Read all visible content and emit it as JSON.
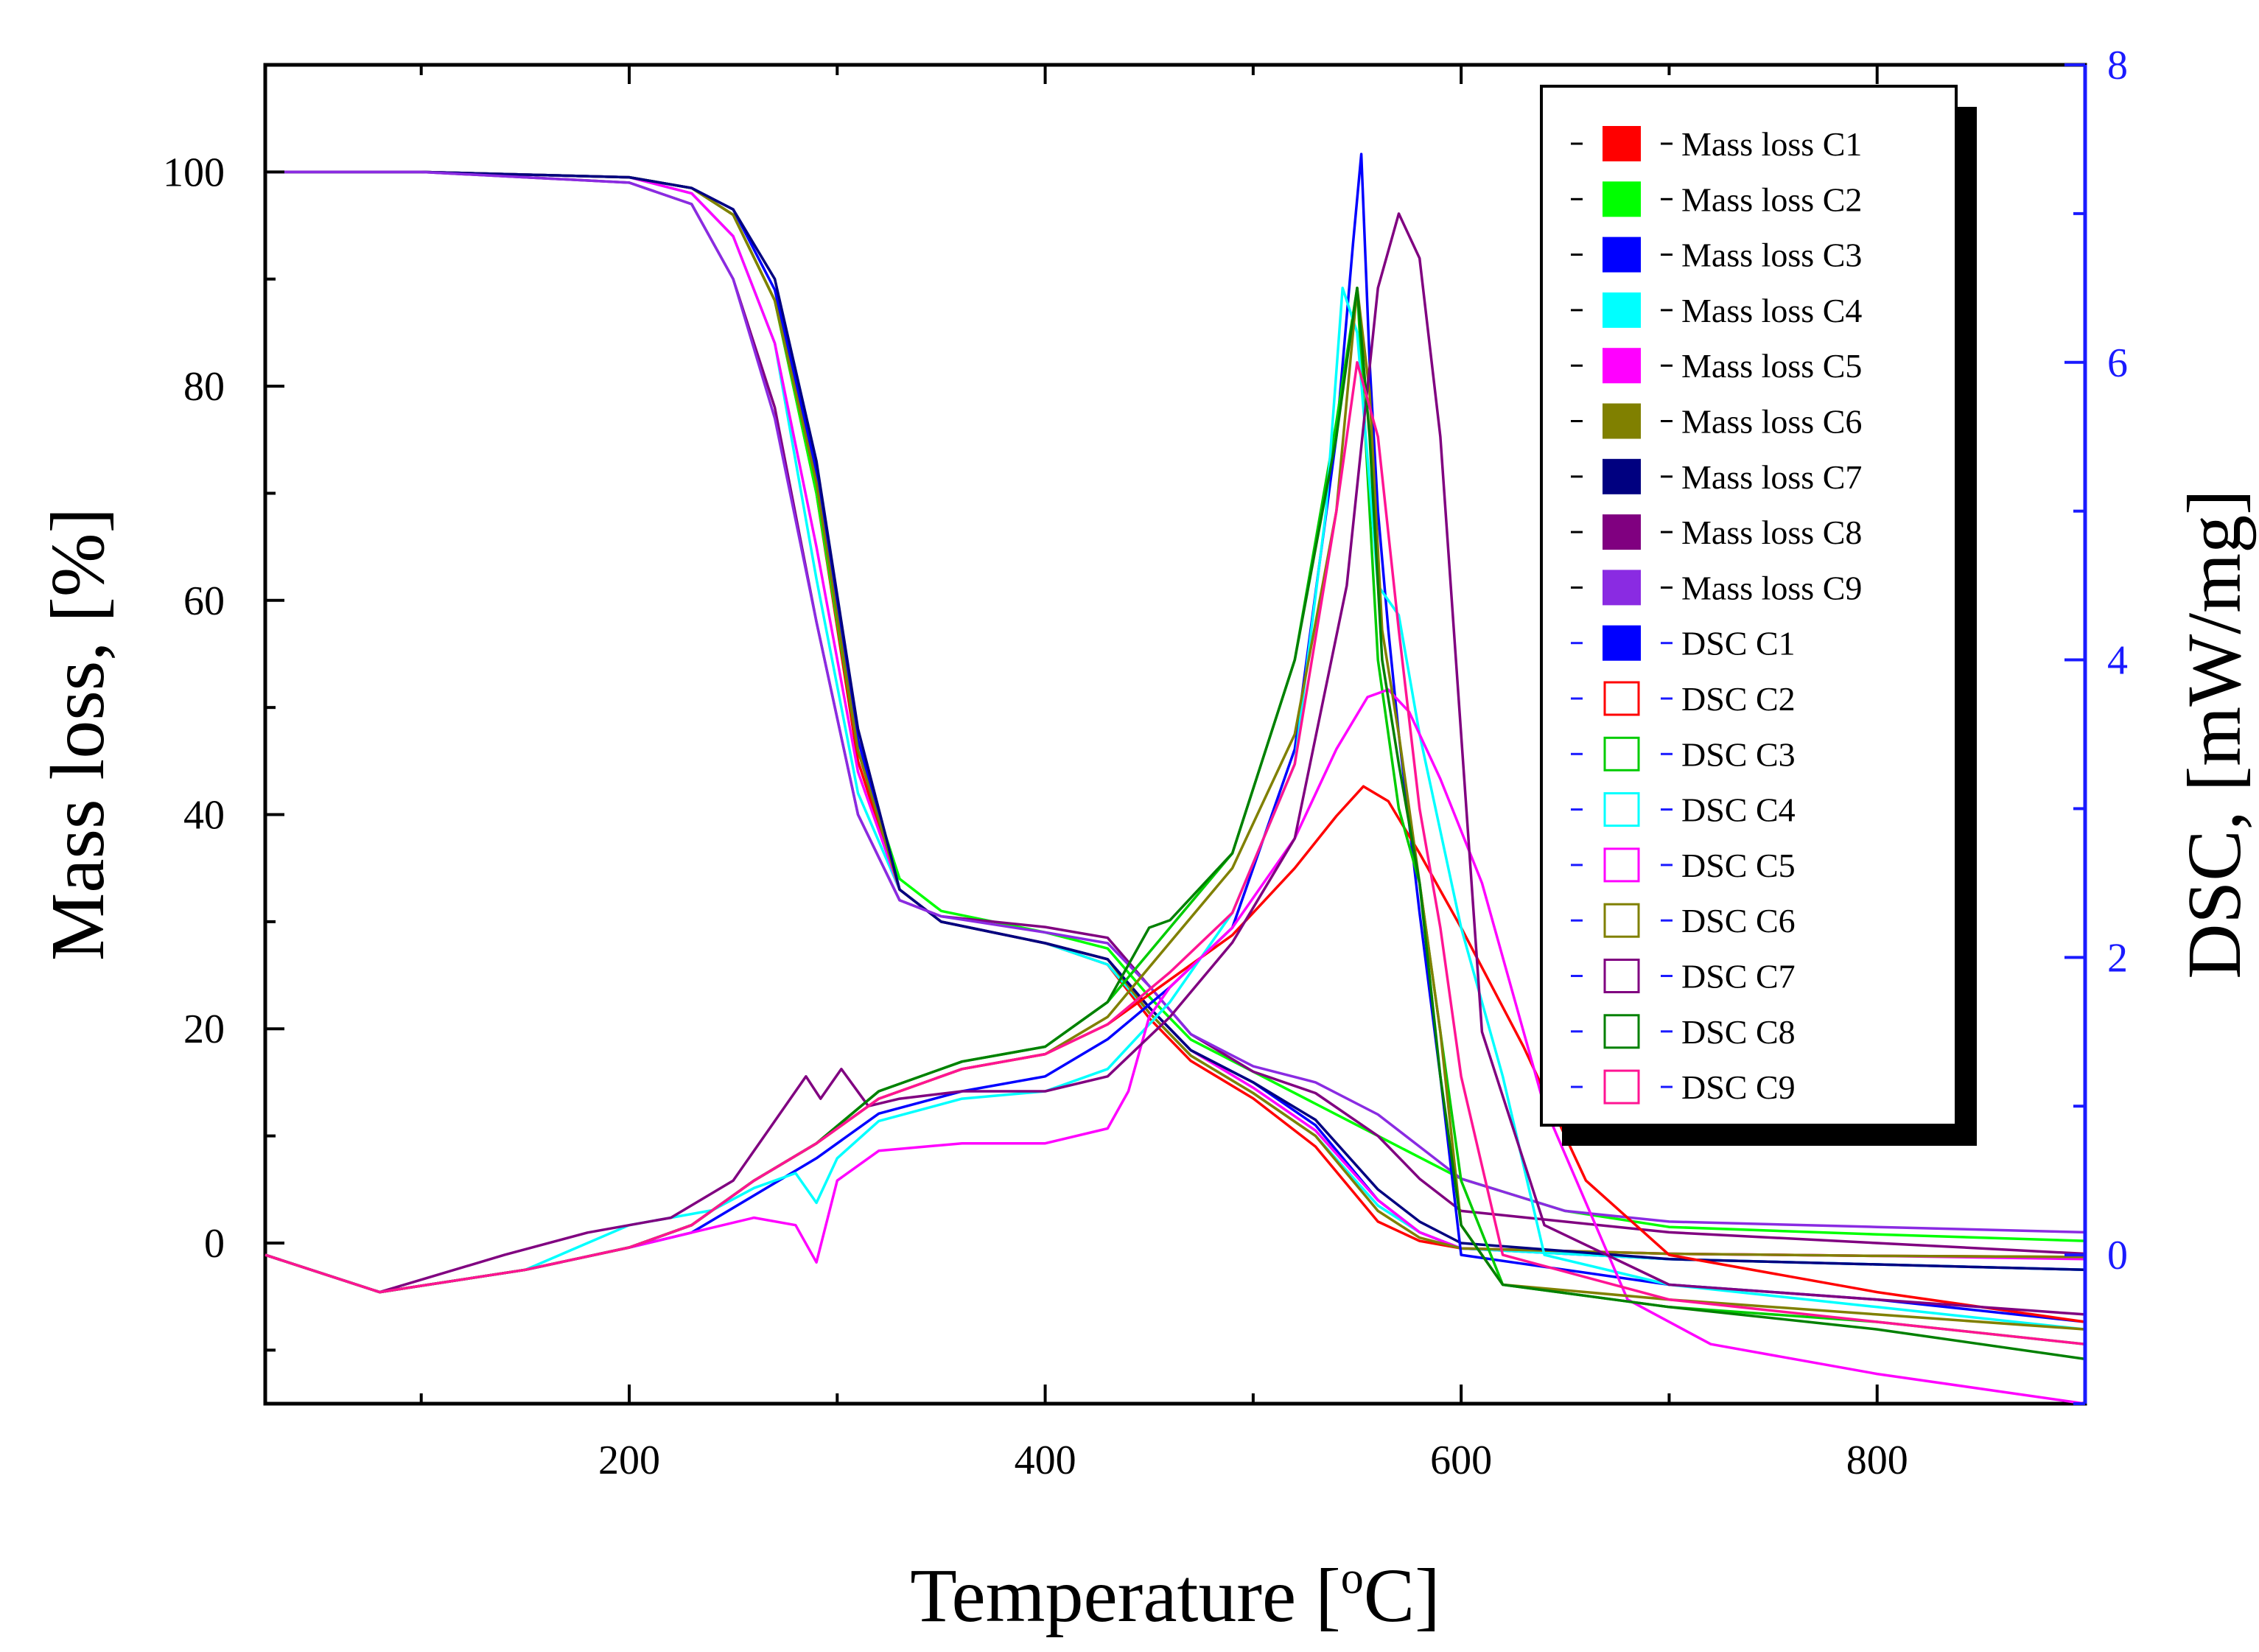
{
  "chart_data": {
    "type": "line",
    "xlabel": "Temperature [",
    "xlabel_sup": "o",
    "xlabel_unit": "C]",
    "ylabel": "Mass loss, [%]",
    "y2label": "DSC, [mW/mg]",
    "xlim": [
      25,
      900
    ],
    "ylim": [
      -15,
      110
    ],
    "y2lim": [
      -1,
      8
    ],
    "x_ticks": [
      200,
      400,
      600,
      800
    ],
    "y_ticks": [
      0,
      20,
      40,
      60,
      80,
      100
    ],
    "y2_ticks": [
      0,
      2,
      4,
      6,
      8
    ],
    "colors": {
      "left_axis": "#000000",
      "right_axis": "#1a1aff",
      "background": "#ffffff"
    },
    "legend": {
      "placement": "top-right",
      "items": [
        {
          "label": "Mass loss C1",
          "color": "#ff0000",
          "style": "filled"
        },
        {
          "label": "Mass loss C2",
          "color": "#00ff00",
          "style": "filled"
        },
        {
          "label": "Mass loss C3",
          "color": "#0000ff",
          "style": "filled"
        },
        {
          "label": "Mass loss C4",
          "color": "#00ffff",
          "style": "filled"
        },
        {
          "label": "Mass loss C5",
          "color": "#ff00ff",
          "style": "filled"
        },
        {
          "label": "Mass loss C6",
          "color": "#808000",
          "style": "filled"
        },
        {
          "label": "Mass loss C7",
          "color": "#000080",
          "style": "filled"
        },
        {
          "label": "Mass loss C8",
          "color": "#800080",
          "style": "filled"
        },
        {
          "label": "Mass loss C9",
          "color": "#8a2be2",
          "style": "filled"
        },
        {
          "label": "DSC C1",
          "color": "#0000ff",
          "style": "filled"
        },
        {
          "label": "DSC C2",
          "color": "#ff0000",
          "style": "open"
        },
        {
          "label": "DSC C3",
          "color": "#00cc00",
          "style": "open"
        },
        {
          "label": "DSC C4",
          "color": "#00ffff",
          "style": "open"
        },
        {
          "label": "DSC C5",
          "color": "#ff00ff",
          "style": "open"
        },
        {
          "label": "DSC C6",
          "color": "#808000",
          "style": "open"
        },
        {
          "label": "DSC C7",
          "color": "#800080",
          "style": "open"
        },
        {
          "label": "DSC C8",
          "color": "#008000",
          "style": "open"
        },
        {
          "label": "DSC C9",
          "color": "#ff1493",
          "style": "open"
        }
      ]
    },
    "mass_loss_series": [
      {
        "name": "Mass loss C1",
        "color": "#ff0000",
        "x": [
          25,
          100,
          200,
          230,
          250,
          270,
          290,
          310,
          330,
          350,
          400,
          430,
          450,
          470,
          500,
          530,
          560,
          580,
          600,
          700,
          800,
          900
        ],
        "y": [
          100,
          100,
          99.5,
          98.5,
          96,
          88,
          70,
          45,
          33,
          30,
          28,
          26,
          21,
          17,
          13.5,
          9,
          2,
          0.2,
          -0.5,
          -1,
          -1.2,
          -1.3
        ]
      },
      {
        "name": "Mass loss C2",
        "color": "#00ff00",
        "x": [
          25,
          100,
          200,
          230,
          250,
          270,
          290,
          310,
          330,
          350,
          400,
          430,
          450,
          470,
          500,
          530,
          560,
          580,
          600,
          650,
          700,
          800,
          900
        ],
        "y": [
          100,
          100,
          99.5,
          98.5,
          96,
          88,
          70,
          46,
          34,
          31,
          29,
          27.5,
          23,
          19,
          16,
          13,
          10,
          8,
          6,
          3,
          1.5,
          0.8,
          0.2
        ]
      },
      {
        "name": "Mass loss C3",
        "color": "#0000ff",
        "x": [
          25,
          100,
          200,
          230,
          250,
          270,
          290,
          310,
          330,
          350,
          400,
          430,
          450,
          470,
          500,
          530,
          560,
          580,
          600,
          700,
          800,
          900
        ],
        "y": [
          100,
          100,
          99.5,
          98.5,
          96.5,
          89,
          72,
          47,
          33,
          30,
          28,
          26.5,
          22,
          18,
          15,
          11,
          4,
          1,
          -0.5,
          -1.5,
          -2,
          -2.5
        ]
      },
      {
        "name": "Mass loss C4",
        "color": "#00ffff",
        "x": [
          25,
          100,
          200,
          230,
          250,
          270,
          290,
          310,
          330,
          350,
          400,
          430,
          450,
          470,
          500,
          530,
          560,
          580,
          600,
          700,
          800,
          900
        ],
        "y": [
          100,
          100,
          99.5,
          98,
          94,
          84,
          62,
          42,
          33,
          30,
          28,
          26,
          21.5,
          17.5,
          14,
          10,
          3.5,
          1,
          -0.5,
          -1.5,
          -2,
          -2.5
        ]
      },
      {
        "name": "Mass loss C5",
        "color": "#ff00ff",
        "x": [
          25,
          100,
          200,
          230,
          250,
          270,
          290,
          310,
          330,
          350,
          400,
          430,
          450,
          470,
          500,
          530,
          560,
          580,
          600,
          700,
          800,
          900
        ],
        "y": [
          100,
          100,
          99.5,
          98,
          94,
          84,
          65,
          44,
          33,
          30,
          28,
          26.5,
          22,
          18,
          14.5,
          10.5,
          4,
          1,
          -0.5,
          -1,
          -1.2,
          -1.5
        ]
      },
      {
        "name": "Mass loss C6",
        "color": "#808000",
        "x": [
          25,
          100,
          200,
          230,
          250,
          270,
          290,
          310,
          330,
          350,
          400,
          430,
          450,
          470,
          500,
          530,
          560,
          580,
          600,
          700,
          800,
          900
        ],
        "y": [
          100,
          100,
          99.5,
          98.5,
          96,
          88,
          71,
          46,
          33,
          30,
          28,
          26.5,
          21.5,
          17.5,
          14,
          10,
          3,
          0.5,
          -0.5,
          -1,
          -1.2,
          -1.3
        ]
      },
      {
        "name": "Mass loss C7",
        "color": "#000080",
        "x": [
          25,
          100,
          200,
          230,
          250,
          270,
          290,
          310,
          330,
          350,
          400,
          430,
          450,
          470,
          500,
          530,
          560,
          580,
          600,
          700,
          800,
          900
        ],
        "y": [
          100,
          100,
          99.5,
          98.5,
          96.5,
          90,
          73,
          48,
          33,
          30,
          28,
          26.5,
          22,
          18,
          15,
          11.5,
          5,
          2,
          0,
          -1.5,
          -2,
          -2.5
        ]
      },
      {
        "name": "Mass loss C8",
        "color": "#800080",
        "x": [
          25,
          100,
          200,
          230,
          250,
          270,
          290,
          310,
          330,
          350,
          400,
          430,
          450,
          470,
          500,
          530,
          560,
          580,
          600,
          700,
          800,
          900
        ],
        "y": [
          100,
          100,
          99,
          97,
          90,
          78,
          58,
          40,
          32,
          30.5,
          29.5,
          28.5,
          24,
          19.5,
          16,
          14,
          10,
          6,
          3,
          1,
          0,
          -1
        ]
      },
      {
        "name": "Mass loss C9",
        "color": "#8a2be2",
        "x": [
          25,
          100,
          200,
          230,
          250,
          270,
          290,
          310,
          330,
          350,
          400,
          430,
          450,
          470,
          500,
          530,
          560,
          580,
          600,
          650,
          700,
          800,
          900
        ],
        "y": [
          100,
          100,
          99,
          97,
          90,
          77,
          58,
          40,
          32,
          30.5,
          29,
          28,
          24,
          19.5,
          16.5,
          15,
          12,
          9,
          6,
          3,
          2,
          1.5,
          1
        ]
      }
    ],
    "dsc_series": [
      {
        "name": "DSC C1",
        "color": "#0000ff",
        "x": [
          25,
          80,
          150,
          200,
          230,
          260,
          290,
          320,
          360,
          400,
          430,
          460,
          490,
          520,
          540,
          548,
          552,
          556,
          560,
          565,
          570,
          580,
          590,
          600,
          650,
          700,
          800,
          900
        ],
        "y": [
          0,
          -0.25,
          -0.1,
          0.05,
          0.15,
          0.4,
          0.65,
          0.95,
          1.1,
          1.2,
          1.45,
          1.8,
          2.2,
          3.4,
          5.5,
          6.8,
          7.4,
          6,
          5,
          4.2,
          3.5,
          2.3,
          1.2,
          0,
          -0.1,
          -0.2,
          -0.3,
          -0.45
        ]
      },
      {
        "name": "DSC C2",
        "color": "#ff0000",
        "x": [
          25,
          80,
          150,
          200,
          230,
          260,
          290,
          320,
          360,
          400,
          430,
          460,
          490,
          520,
          540,
          553,
          565,
          580,
          600,
          630,
          660,
          700,
          800,
          900
        ],
        "y": [
          0,
          -0.25,
          -0.1,
          0.05,
          0.2,
          0.5,
          0.75,
          1.05,
          1.25,
          1.35,
          1.55,
          1.85,
          2.15,
          2.6,
          2.95,
          3.15,
          3.05,
          2.7,
          2.2,
          1.4,
          0.5,
          0,
          -0.25,
          -0.45
        ]
      },
      {
        "name": "DSC C3",
        "color": "#00cc00",
        "x": [
          25,
          80,
          150,
          200,
          230,
          260,
          290,
          320,
          360,
          400,
          430,
          460,
          490,
          520,
          540,
          550,
          560,
          570,
          580,
          600,
          620,
          700,
          800,
          900
        ],
        "y": [
          0,
          -0.25,
          -0.1,
          0.05,
          0.2,
          0.5,
          0.75,
          1.1,
          1.3,
          1.4,
          1.7,
          2.2,
          2.7,
          4,
          5.6,
          6.5,
          4,
          3,
          2.5,
          0.5,
          -0.2,
          -0.35,
          -0.45,
          -0.6
        ]
      },
      {
        "name": "DSC C4",
        "color": "#00ffff",
        "x": [
          25,
          80,
          150,
          200,
          220,
          240,
          260,
          280,
          290,
          300,
          320,
          360,
          400,
          430,
          460,
          490,
          520,
          535,
          543,
          550,
          560,
          570,
          580,
          600,
          620,
          640,
          700,
          800,
          900
        ],
        "y": [
          0,
          -0.25,
          -0.1,
          0.2,
          0.25,
          0.3,
          0.45,
          0.55,
          0.35,
          0.65,
          0.9,
          1.05,
          1.1,
          1.25,
          1.7,
          2.3,
          3.3,
          5,
          6.5,
          6.2,
          4.5,
          4.3,
          3.5,
          2.2,
          1.2,
          0,
          -0.2,
          -0.35,
          -0.5
        ]
      },
      {
        "name": "DSC C5",
        "color": "#ff00ff",
        "x": [
          25,
          80,
          150,
          200,
          230,
          260,
          280,
          290,
          300,
          320,
          360,
          400,
          430,
          440,
          450,
          460,
          490,
          520,
          540,
          555,
          565,
          575,
          590,
          610,
          640,
          680,
          720,
          800,
          900
        ],
        "y": [
          0,
          -0.25,
          -0.1,
          0.05,
          0.15,
          0.25,
          0.2,
          -0.05,
          0.5,
          0.7,
          0.75,
          0.75,
          0.85,
          1.1,
          1.6,
          1.8,
          2.2,
          2.8,
          3.4,
          3.75,
          3.8,
          3.65,
          3.2,
          2.5,
          1,
          -0.3,
          -0.6,
          -0.8,
          -1
        ]
      },
      {
        "name": "DSC C6",
        "color": "#808000",
        "x": [
          25,
          80,
          150,
          200,
          230,
          260,
          290,
          320,
          360,
          400,
          430,
          460,
          490,
          520,
          540,
          550,
          556,
          562,
          570,
          580,
          590,
          600,
          620,
          700,
          800,
          900
        ],
        "y": [
          0,
          -0.25,
          -0.1,
          0.05,
          0.2,
          0.5,
          0.75,
          1.05,
          1.25,
          1.35,
          1.6,
          2.1,
          2.6,
          3.5,
          5,
          6.5,
          5.8,
          4.2,
          3.5,
          2.5,
          1.5,
          0.2,
          -0.2,
          -0.3,
          -0.4,
          -0.5
        ]
      },
      {
        "name": "DSC C7",
        "color": "#800080",
        "x": [
          25,
          80,
          140,
          180,
          220,
          250,
          270,
          285,
          292,
          302,
          315,
          330,
          360,
          400,
          430,
          460,
          490,
          520,
          545,
          560,
          570,
          580,
          590,
          600,
          610,
          640,
          700,
          800,
          900
        ],
        "y": [
          0,
          -0.25,
          0,
          0.15,
          0.25,
          0.5,
          0.9,
          1.2,
          1.05,
          1.25,
          1,
          1.05,
          1.1,
          1.1,
          1.2,
          1.6,
          2.1,
          2.8,
          4.5,
          6.5,
          7,
          6.7,
          5.5,
          3.5,
          1.5,
          0.2,
          -0.2,
          -0.3,
          -0.4
        ]
      },
      {
        "name": "DSC C8",
        "color": "#008000",
        "x": [
          25,
          80,
          150,
          200,
          230,
          260,
          290,
          320,
          360,
          400,
          430,
          450,
          460,
          490,
          520,
          540,
          550,
          556,
          562,
          570,
          580,
          590,
          600,
          620,
          700,
          800,
          900
        ],
        "y": [
          0,
          -0.25,
          -0.1,
          0.05,
          0.2,
          0.5,
          0.75,
          1.1,
          1.3,
          1.4,
          1.7,
          2.2,
          2.25,
          2.7,
          4,
          5.5,
          6.5,
          5.5,
          4,
          3.3,
          2.5,
          1.2,
          0.2,
          -0.2,
          -0.35,
          -0.5,
          -0.7
        ]
      },
      {
        "name": "DSC C9",
        "color": "#ff1493",
        "x": [
          25,
          80,
          150,
          200,
          230,
          260,
          290,
          320,
          360,
          400,
          430,
          460,
          490,
          520,
          540,
          550,
          560,
          570,
          580,
          590,
          600,
          620,
          700,
          800,
          900
        ],
        "y": [
          0,
          -0.25,
          -0.1,
          0.05,
          0.2,
          0.5,
          0.75,
          1.05,
          1.25,
          1.35,
          1.55,
          1.9,
          2.3,
          3.3,
          5,
          6,
          5.5,
          4.2,
          3,
          2.2,
          1.2,
          0,
          -0.3,
          -0.45,
          -0.6
        ]
      }
    ]
  }
}
